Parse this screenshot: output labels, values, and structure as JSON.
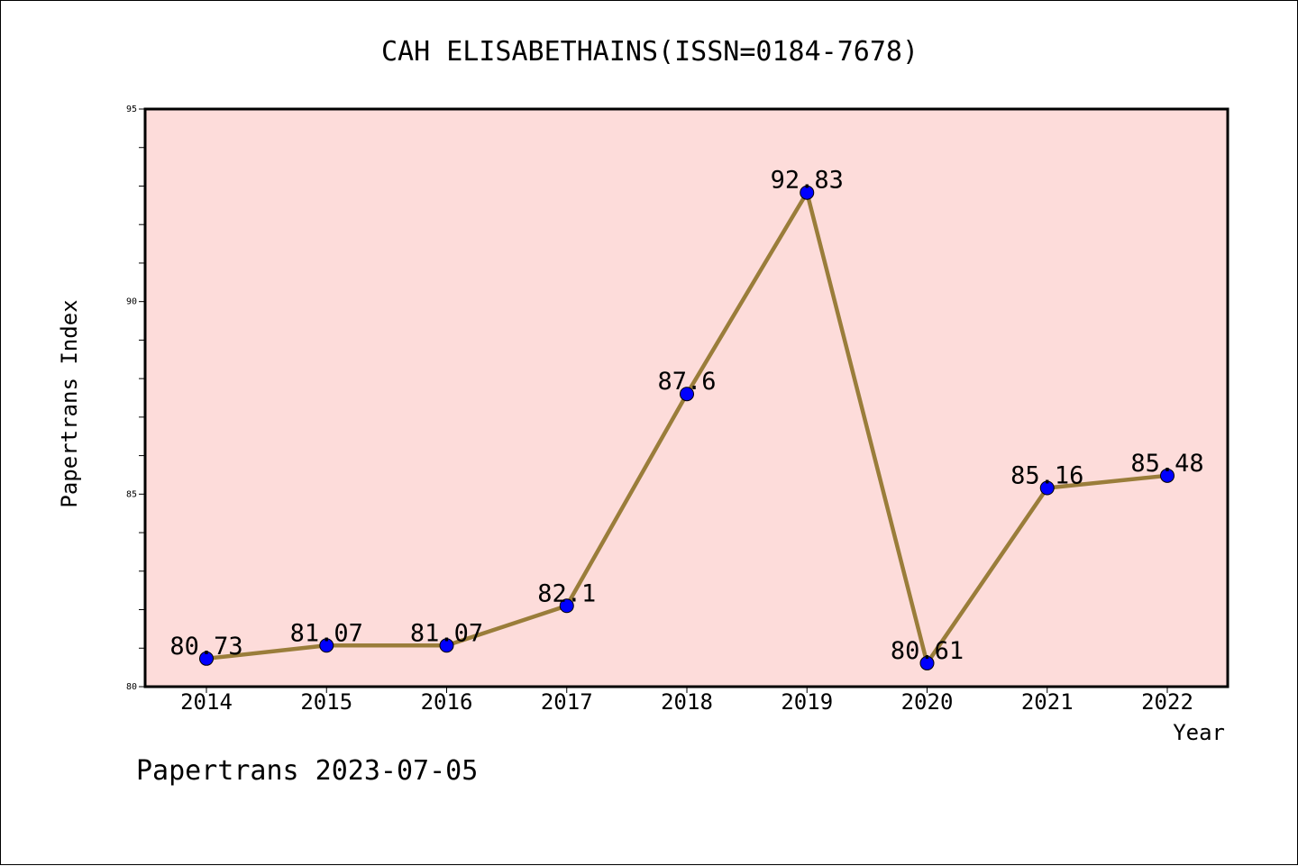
{
  "chart_data": {
    "type": "line",
    "title": "CAH ELISABETHAINS(ISSN=0184-7678)",
    "xlabel": "Year",
    "ylabel": "Papertrans Index",
    "ylim": [
      80,
      95
    ],
    "y_ticks": [
      "80",
      "85",
      "90",
      "95"
    ],
    "categories": [
      "2014",
      "2015",
      "2016",
      "2017",
      "2018",
      "2019",
      "2020",
      "2021",
      "2022"
    ],
    "series": [
      {
        "values": [
          80.73,
          81.07,
          81.07,
          82.1,
          87.6,
          92.83,
          80.61,
          85.16,
          85.48
        ],
        "labels": [
          "80.73",
          "81.07",
          "81.07",
          "82.1",
          "87.6",
          "92.83",
          "80.61",
          "85.16",
          "85.48"
        ]
      }
    ],
    "grid": false,
    "colors": {
      "plot_background": "#FDDCDA",
      "line": "#9A7D3A",
      "marker": "#0000FF"
    }
  },
  "footer": {
    "watermark": "Papertrans 2023-07-05"
  }
}
